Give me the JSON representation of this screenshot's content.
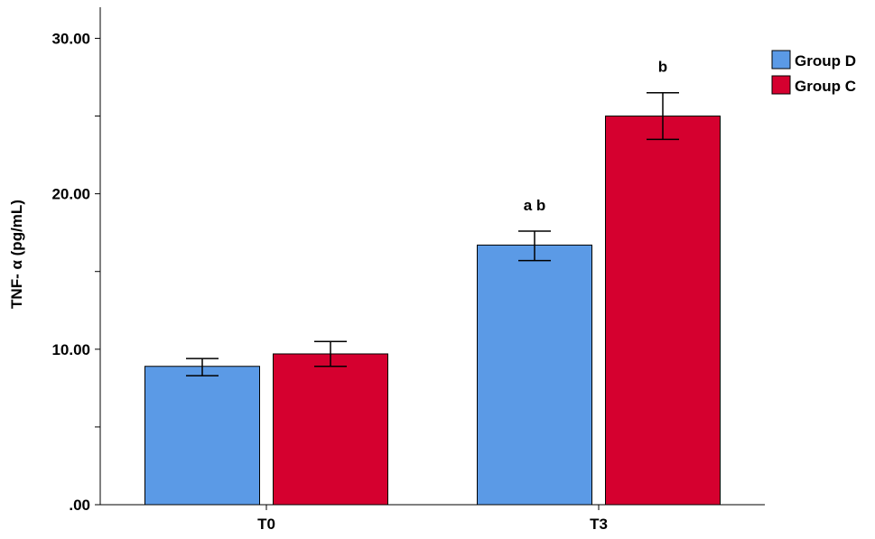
{
  "chart_data": {
    "type": "bar",
    "title": "",
    "xlabel": "",
    "ylabel": "TNF- α (pg/mL)",
    "categories": [
      "T0",
      "T3"
    ],
    "ylim": [
      0,
      32
    ],
    "yticks": [
      0,
      10,
      20,
      30
    ],
    "ytick_labels": [
      ".00",
      "10.00",
      "20.00",
      "30.00"
    ],
    "minor_ticks": [
      5,
      15,
      25
    ],
    "grid": false,
    "legend_position": "top-right",
    "series": [
      {
        "name": "Group D",
        "color": "#5b9ae6",
        "values": [
          8.9,
          16.7
        ],
        "error_low": [
          8.3,
          15.7
        ],
        "error_high": [
          9.4,
          17.6
        ],
        "annotations": [
          "",
          "a b"
        ]
      },
      {
        "name": "Group C",
        "color": "#d5002f",
        "values": [
          9.7,
          25.0
        ],
        "error_low": [
          8.9,
          23.5
        ],
        "error_high": [
          10.5,
          26.5
        ],
        "annotations": [
          "",
          "b"
        ]
      }
    ]
  }
}
